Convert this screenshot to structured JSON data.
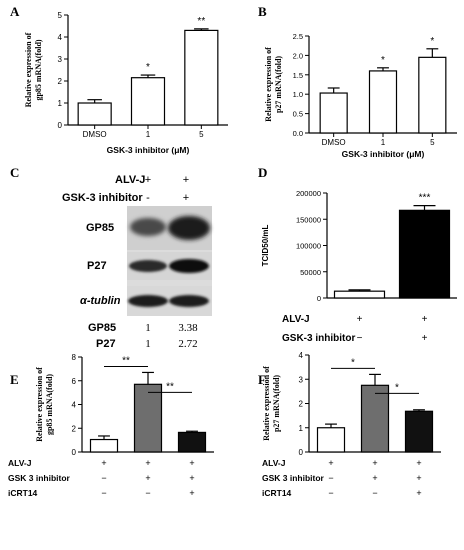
{
  "panels": {
    "A": "A",
    "B": "B",
    "C": "C",
    "D": "D",
    "E": "E",
    "F": "F"
  },
  "blot": {
    "header_rows": [
      "ALV-J",
      "GSK-3 inhibitor"
    ],
    "header_signs": [
      [
        "+",
        "+"
      ],
      [
        "-",
        "+"
      ]
    ],
    "bands": [
      "GP85",
      "P27",
      "α-tublin"
    ],
    "quant_rows": [
      {
        "label": "GP85",
        "values": [
          "1",
          "3.38"
        ]
      },
      {
        "label": "P27",
        "values": [
          "1",
          "2.72"
        ]
      }
    ]
  },
  "chart_data": [
    {
      "panel": "A",
      "type": "bar",
      "categories": [
        "DMSO",
        "1",
        "5"
      ],
      "values": [
        1.0,
        2.15,
        4.3
      ],
      "errors": [
        0.15,
        0.12,
        0.07
      ],
      "significance": [
        "",
        "*",
        "**"
      ],
      "xlabel": "GSK-3 inhibitor (μM)",
      "ylabel": "Relative expression of gp85 mRNA(fold)",
      "ylim": [
        0,
        5
      ],
      "yticks": [
        "0",
        "1",
        "2",
        "3",
        "4",
        "5"
      ],
      "bar_color": "#ffffff"
    },
    {
      "panel": "B",
      "type": "bar",
      "categories": [
        "DMSO",
        "1",
        "5"
      ],
      "values": [
        1.03,
        1.6,
        1.95
      ],
      "errors": [
        0.13,
        0.08,
        0.22
      ],
      "significance": [
        "",
        "*",
        "*"
      ],
      "xlabel": "GSK-3 inhibitor (μM)",
      "ylabel": "Relative expression of p27 mRNA(fold)",
      "ylim": [
        0,
        2.5
      ],
      "yticks": [
        "0.0",
        "0.5",
        "1.0",
        "1.5",
        "2.0",
        "2.5"
      ],
      "bar_color": "#ffffff"
    },
    {
      "panel": "D",
      "type": "bar",
      "values": [
        13000,
        167000
      ],
      "errors": [
        2500,
        9000
      ],
      "significance": [
        "",
        "***"
      ],
      "ylabel": "TCID50/mL",
      "ylim": [
        0,
        200000
      ],
      "yticks": [
        "0",
        "50000",
        "100000",
        "150000",
        "200000"
      ],
      "bar_colors": [
        "#ffffff",
        "#000000"
      ],
      "conditions": [
        {
          "label": "ALV-J",
          "signs": [
            "+",
            "+"
          ]
        },
        {
          "label": "GSK-3 inhibitor",
          "signs": [
            "−",
            "+"
          ]
        }
      ]
    },
    {
      "panel": "E",
      "type": "bar",
      "values": [
        1.05,
        5.7,
        1.65
      ],
      "errors": [
        0.3,
        1.0,
        0.1
      ],
      "ylabel": "Relative expression of gp85 mRNA(fold)",
      "ylim": [
        0,
        8
      ],
      "yticks": [
        "0",
        "2",
        "4",
        "6",
        "8"
      ],
      "bar_colors": [
        "#ffffff",
        "#6e6e6e",
        "#111111"
      ],
      "brackets": [
        {
          "from": 0,
          "to": 1,
          "label": "**"
        },
        {
          "from": 1,
          "to": 2,
          "label": "**"
        }
      ],
      "conditions": [
        {
          "label": "ALV-J",
          "signs": [
            "+",
            "+",
            "+"
          ]
        },
        {
          "label": "GSK 3 inhibitor",
          "signs": [
            "−",
            "+",
            "+"
          ]
        },
        {
          "label": "iCRT14",
          "signs": [
            "−",
            "−",
            "+"
          ]
        }
      ]
    },
    {
      "panel": "F",
      "type": "bar",
      "values": [
        1.0,
        2.75,
        1.68
      ],
      "errors": [
        0.15,
        0.45,
        0.06
      ],
      "ylabel": "Relative expression of p27 mRNA(fold)",
      "ylim": [
        0,
        4
      ],
      "yticks": [
        "0",
        "1",
        "2",
        "3",
        "4"
      ],
      "bar_colors": [
        "#ffffff",
        "#6e6e6e",
        "#111111"
      ],
      "brackets": [
        {
          "from": 0,
          "to": 1,
          "label": "*"
        },
        {
          "from": 1,
          "to": 2,
          "label": "*"
        }
      ],
      "conditions": [
        {
          "label": "ALV-J",
          "signs": [
            "+",
            "+",
            "+"
          ]
        },
        {
          "label": "GSK 3  inhibitor",
          "signs": [
            "−",
            "+",
            "+"
          ]
        },
        {
          "label": "iCRT14",
          "signs": [
            "−",
            "−",
            "+"
          ]
        }
      ]
    }
  ]
}
